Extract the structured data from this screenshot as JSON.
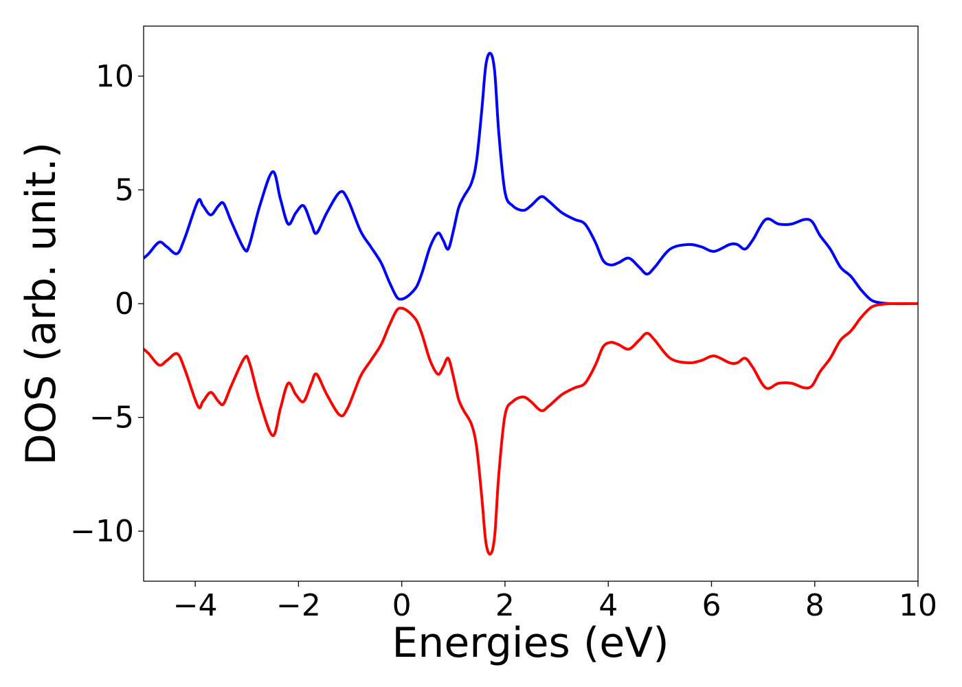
{
  "chart_data": {
    "type": "line",
    "title": "",
    "xlabel": "Energies (eV)",
    "ylabel": "DOS (arb. unit.)",
    "xlim": [
      -5,
      10
    ],
    "ylim": [
      -12.2,
      12.2
    ],
    "xticks": [
      -4,
      -2,
      0,
      2,
      4,
      6,
      8,
      10
    ],
    "xtick_labels": [
      "−4",
      "−2",
      "0",
      "2",
      "4",
      "6",
      "8",
      "10"
    ],
    "yticks": [
      10,
      5,
      0,
      -5,
      -10
    ],
    "ytick_labels": [
      "10",
      "5",
      "0",
      "−5",
      "−10"
    ],
    "grid": false,
    "legend": "none",
    "series": [
      {
        "color": "#0000ff",
        "x": [
          -5.0,
          -4.9,
          -4.7,
          -4.55,
          -4.35,
          -4.2,
          -3.95,
          -3.85,
          -3.7,
          -3.55,
          -3.45,
          -3.3,
          -3.05,
          -2.95,
          -2.75,
          -2.5,
          -2.35,
          -2.2,
          -2.05,
          -1.9,
          -1.75,
          -1.65,
          -1.45,
          -1.2,
          -1.05,
          -0.8,
          -0.6,
          -0.4,
          -0.25,
          -0.1,
          0.0,
          0.1,
          0.2,
          0.3,
          0.4,
          0.55,
          0.7,
          0.8,
          0.9,
          1.0,
          1.1,
          1.2,
          1.35,
          1.45,
          1.55,
          1.63,
          1.72,
          1.8,
          1.88,
          2.0,
          2.15,
          2.35,
          2.5,
          2.7,
          2.85,
          3.1,
          3.35,
          3.55,
          3.75,
          3.9,
          4.05,
          4.2,
          4.4,
          4.6,
          4.75,
          4.9,
          5.2,
          5.55,
          5.8,
          6.05,
          6.35,
          6.5,
          6.65,
          6.8,
          7.05,
          7.3,
          7.55,
          7.8,
          7.95,
          8.1,
          8.3,
          8.5,
          8.7,
          8.9,
          9.1,
          9.3,
          9.5,
          10.0
        ],
        "y": [
          2.0,
          2.2,
          2.7,
          2.5,
          2.2,
          2.9,
          4.5,
          4.3,
          3.9,
          4.3,
          4.4,
          3.6,
          2.4,
          2.6,
          4.3,
          5.8,
          4.6,
          3.5,
          4.0,
          4.3,
          3.5,
          3.1,
          4.0,
          4.9,
          4.6,
          3.2,
          2.5,
          1.8,
          1.0,
          0.3,
          0.2,
          0.3,
          0.5,
          0.8,
          1.4,
          2.5,
          3.1,
          2.8,
          2.4,
          3.2,
          4.2,
          4.7,
          5.3,
          6.3,
          8.5,
          10.5,
          11.0,
          10.2,
          7.5,
          4.9,
          4.3,
          4.1,
          4.3,
          4.7,
          4.5,
          4.0,
          3.7,
          3.5,
          2.7,
          1.9,
          1.7,
          1.8,
          2.0,
          1.6,
          1.3,
          1.6,
          2.4,
          2.6,
          2.5,
          2.3,
          2.6,
          2.6,
          2.4,
          2.8,
          3.7,
          3.5,
          3.5,
          3.7,
          3.6,
          3.0,
          2.4,
          1.6,
          1.2,
          0.6,
          0.15,
          0.03,
          0.0,
          0.0
        ]
      },
      {
        "color": "#ff0000",
        "x": [
          -5.0,
          -4.9,
          -4.7,
          -4.55,
          -4.35,
          -4.2,
          -3.95,
          -3.85,
          -3.7,
          -3.55,
          -3.45,
          -3.3,
          -3.05,
          -2.95,
          -2.75,
          -2.5,
          -2.35,
          -2.2,
          -2.05,
          -1.9,
          -1.75,
          -1.65,
          -1.45,
          -1.2,
          -1.05,
          -0.8,
          -0.6,
          -0.4,
          -0.25,
          -0.1,
          0.0,
          0.1,
          0.2,
          0.3,
          0.4,
          0.55,
          0.7,
          0.8,
          0.9,
          1.0,
          1.1,
          1.2,
          1.35,
          1.45,
          1.55,
          1.63,
          1.72,
          1.8,
          1.88,
          2.0,
          2.15,
          2.35,
          2.5,
          2.7,
          2.85,
          3.1,
          3.35,
          3.55,
          3.75,
          3.9,
          4.05,
          4.2,
          4.4,
          4.6,
          4.75,
          4.9,
          5.2,
          5.55,
          5.8,
          6.05,
          6.35,
          6.5,
          6.65,
          6.8,
          7.05,
          7.3,
          7.55,
          7.8,
          7.95,
          8.1,
          8.3,
          8.5,
          8.7,
          8.9,
          9.1,
          9.3,
          9.5,
          10.0
        ],
        "y": [
          -2.0,
          -2.2,
          -2.7,
          -2.5,
          -2.2,
          -2.9,
          -4.5,
          -4.3,
          -3.9,
          -4.3,
          -4.4,
          -3.6,
          -2.4,
          -2.6,
          -4.3,
          -5.8,
          -4.6,
          -3.5,
          -4.0,
          -4.3,
          -3.5,
          -3.1,
          -4.0,
          -4.9,
          -4.6,
          -3.2,
          -2.5,
          -1.8,
          -1.0,
          -0.3,
          -0.2,
          -0.3,
          -0.5,
          -0.8,
          -1.4,
          -2.5,
          -3.1,
          -2.8,
          -2.4,
          -3.2,
          -4.2,
          -4.7,
          -5.3,
          -6.3,
          -8.5,
          -10.5,
          -11.0,
          -10.2,
          -7.5,
          -4.9,
          -4.3,
          -4.1,
          -4.3,
          -4.7,
          -4.5,
          -4.0,
          -3.7,
          -3.5,
          -2.7,
          -1.9,
          -1.7,
          -1.8,
          -2.0,
          -1.6,
          -1.3,
          -1.6,
          -2.4,
          -2.6,
          -2.5,
          -2.3,
          -2.6,
          -2.6,
          -2.4,
          -2.8,
          -3.7,
          -3.5,
          -3.5,
          -3.7,
          -3.6,
          -3.0,
          -2.4,
          -1.6,
          -1.2,
          -0.6,
          -0.15,
          -0.03,
          0.0,
          0.0
        ]
      }
    ]
  }
}
